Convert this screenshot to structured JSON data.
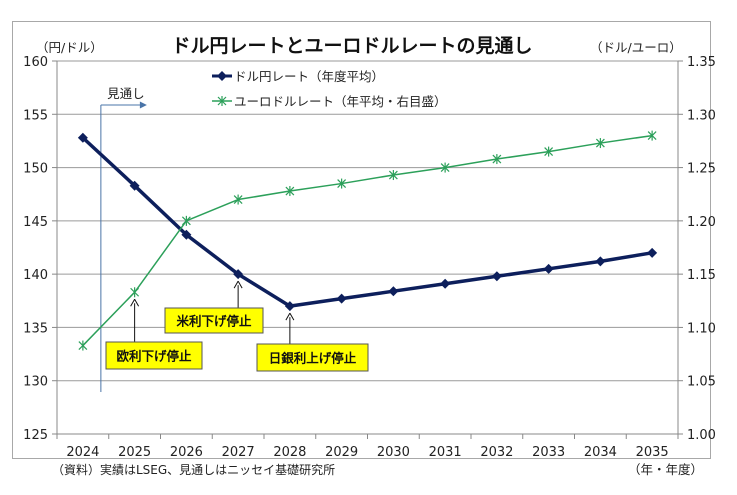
{
  "chart_data": {
    "type": "line",
    "title": "ドル円レートとユーロドルレートの見通し",
    "left_axis_unit": "（円/ドル）",
    "right_axis_unit": "（ドル/ユーロ）",
    "x_axis_unit": "（年・年度）",
    "categories": [
      "2024",
      "2025",
      "2026",
      "2027",
      "2028",
      "2029",
      "2030",
      "2031",
      "2032",
      "2033",
      "2034",
      "2035"
    ],
    "left_ylim": [
      125,
      160
    ],
    "left_yticks": [
      "125",
      "130",
      "135",
      "140",
      "145",
      "150",
      "155",
      "160"
    ],
    "right_ylim": [
      1.0,
      1.35
    ],
    "right_yticks": [
      "1.00",
      "1.05",
      "1.10",
      "1.15",
      "1.20",
      "1.25",
      "1.30",
      "1.35"
    ],
    "grid": true,
    "legend_position": "top-center",
    "series": [
      {
        "name": "ドル円レート（年度平均）",
        "axis": "left",
        "color": "#0d1f5c",
        "marker": "diamond",
        "values": [
          152.8,
          148.3,
          143.7,
          140.0,
          137.0,
          137.7,
          138.4,
          139.1,
          139.8,
          140.5,
          141.2,
          142.0
        ]
      },
      {
        "name": "ユーロドルレート（年平均・右目盛）",
        "axis": "right",
        "color": "#2ca05a",
        "marker": "asterisk",
        "values": [
          1.083,
          1.133,
          1.2,
          1.22,
          1.228,
          1.235,
          1.243,
          1.25,
          1.258,
          1.265,
          1.273,
          1.28
        ]
      }
    ],
    "forecast_marker": {
      "label": "見通し",
      "after_category": "2024"
    },
    "annotations": [
      {
        "label": "欧利下げ停止",
        "category": "2025",
        "series": 1
      },
      {
        "label": "米利下げ停止",
        "category": "2027",
        "series": 0
      },
      {
        "label": "日銀利上げ停止",
        "category": "2028",
        "series": 0
      }
    ],
    "source_note": "（資料）実績はLSEG、見通しはニッセイ基礎研究所"
  }
}
